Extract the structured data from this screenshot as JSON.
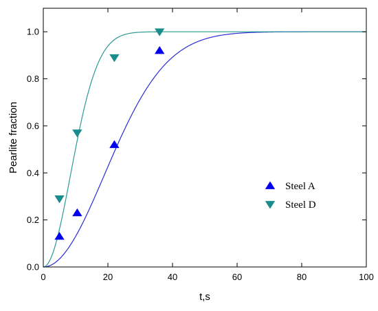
{
  "chart_data": {
    "type": "scatter",
    "title": "",
    "xlabel": "t,s",
    "ylabel": "Pearlite fraction",
    "xlim": [
      0,
      100
    ],
    "ylim": [
      0,
      1.1
    ],
    "xticks": [
      0,
      20,
      40,
      60,
      80,
      100
    ],
    "xtick_labels": [
      "0",
      "20",
      "40",
      "60",
      "80",
      "100"
    ],
    "yticks": [
      0.0,
      0.2,
      0.4,
      0.6,
      0.8,
      1.0
    ],
    "ytick_labels": [
      "0.0",
      "0.2",
      "0.4",
      "0.6",
      "0.8",
      "1.0"
    ],
    "grid": false,
    "legend_position": "center-right",
    "series": [
      {
        "name": "Steel A",
        "marker": "triangle-up",
        "color": "#0000ee",
        "x": [
          5,
          10.5,
          22,
          36
        ],
        "y": [
          0.13,
          0.23,
          0.52,
          0.92
        ],
        "fit": {
          "type": "avrami",
          "k": 0.00139,
          "n": 2,
          "color": "#2b2bd6"
        }
      },
      {
        "name": "Steel D",
        "marker": "triangle-down",
        "color": "#1a8c8c",
        "x": [
          5,
          10.5,
          22,
          36
        ],
        "y": [
          0.29,
          0.57,
          0.89,
          1.0
        ],
        "fit": {
          "type": "avrami",
          "k": 0.007,
          "n": 2,
          "color": "#2a9a92"
        }
      }
    ]
  }
}
